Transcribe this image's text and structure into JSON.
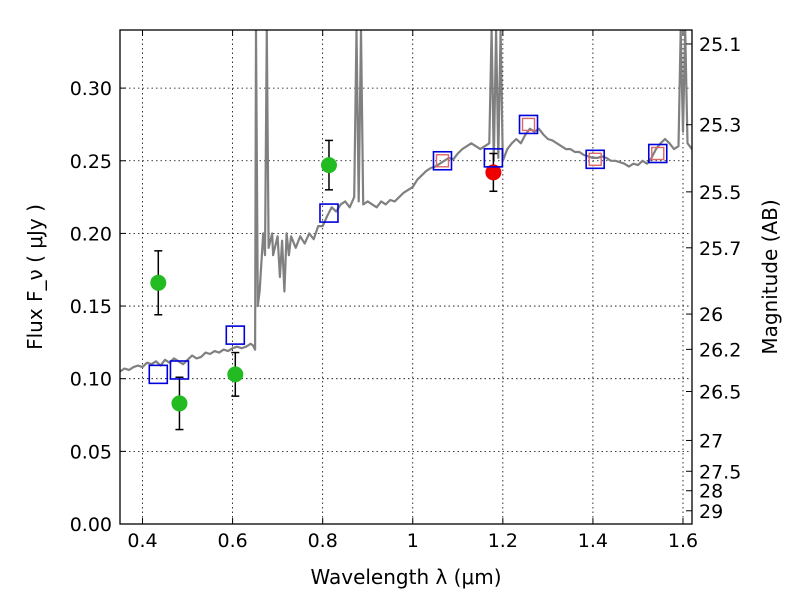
{
  "chart_data": {
    "type": "scatter",
    "title": "",
    "xlabel": "Wavelength  λ (μm)",
    "ylabel": "Flux  F_ν  ( μJy )",
    "y2label": "Magnitude (AB)",
    "xlim": [
      0.35,
      1.62
    ],
    "ylim": [
      0.0,
      0.34
    ],
    "grid": true,
    "x_ticks": [
      0.4,
      0.6,
      0.8,
      1.0,
      1.2,
      1.4,
      1.6
    ],
    "x_tick_labels": [
      "0.4",
      "0.6",
      "0.8",
      "1",
      "1.2",
      "1.4",
      "1.6"
    ],
    "y_ticks": [
      0.0,
      0.05,
      0.1,
      0.15,
      0.2,
      0.25,
      0.3
    ],
    "y_tick_labels": [
      "0.00",
      "0.05",
      "0.10",
      "0.15",
      "0.20",
      "0.25",
      "0.30"
    ],
    "y2_ticks": [
      {
        "label": "25.1",
        "flux": 0.3304
      },
      {
        "label": "25.3",
        "flux": 0.2748
      },
      {
        "label": "25.5",
        "flux": 0.2286
      },
      {
        "label": "25.7",
        "flux": 0.1901
      },
      {
        "label": "26",
        "flux": 0.1445
      },
      {
        "label": "26.2",
        "flux": 0.1202
      },
      {
        "label": "26.5",
        "flux": 0.0912
      },
      {
        "label": "27",
        "flux": 0.0575
      },
      {
        "label": "27.5",
        "flux": 0.0363
      },
      {
        "label": "28",
        "flux": 0.0229
      },
      {
        "label": "29",
        "flux": 0.0091
      }
    ],
    "colors": {
      "model": "#808080",
      "observed": "#22bb22",
      "observed_highlight": "#ee0000",
      "model_band": "#0000dd",
      "model_band_inner": "#dd6666"
    },
    "series": [
      {
        "name": "model_spectrum",
        "type": "line",
        "x": [
          0.35,
          0.36,
          0.37,
          0.38,
          0.39,
          0.4,
          0.41,
          0.42,
          0.43,
          0.44,
          0.45,
          0.46,
          0.47,
          0.48,
          0.49,
          0.5,
          0.51,
          0.52,
          0.53,
          0.54,
          0.55,
          0.56,
          0.57,
          0.58,
          0.59,
          0.6,
          0.61,
          0.62,
          0.63,
          0.64,
          0.645,
          0.65,
          0.652,
          0.656,
          0.66,
          0.664,
          0.668,
          0.672,
          0.676,
          0.68,
          0.684,
          0.688,
          0.69,
          0.7,
          0.705,
          0.71,
          0.715,
          0.72,
          0.725,
          0.73,
          0.74,
          0.75,
          0.76,
          0.77,
          0.78,
          0.79,
          0.8,
          0.81,
          0.82,
          0.83,
          0.84,
          0.85,
          0.86,
          0.87,
          0.875,
          0.88,
          0.885,
          0.89,
          0.9,
          0.91,
          0.92,
          0.93,
          0.94,
          0.95,
          0.96,
          0.97,
          0.98,
          0.99,
          1.0,
          1.01,
          1.02,
          1.03,
          1.04,
          1.05,
          1.06,
          1.07,
          1.08,
          1.09,
          1.1,
          1.11,
          1.12,
          1.13,
          1.14,
          1.15,
          1.16,
          1.17,
          1.175,
          1.18,
          1.185,
          1.19,
          1.195,
          1.2,
          1.21,
          1.22,
          1.23,
          1.24,
          1.25,
          1.26,
          1.27,
          1.28,
          1.29,
          1.3,
          1.31,
          1.32,
          1.33,
          1.34,
          1.35,
          1.36,
          1.37,
          1.38,
          1.39,
          1.4,
          1.41,
          1.42,
          1.43,
          1.44,
          1.45,
          1.46,
          1.47,
          1.48,
          1.49,
          1.5,
          1.51,
          1.52,
          1.53,
          1.54,
          1.55,
          1.56,
          1.57,
          1.58,
          1.59,
          1.595,
          1.6,
          1.605,
          1.61,
          1.62
        ],
        "y": [
          0.105,
          0.107,
          0.106,
          0.108,
          0.109,
          0.108,
          0.111,
          0.11,
          0.112,
          0.109,
          0.113,
          0.111,
          0.114,
          0.112,
          0.11,
          0.113,
          0.116,
          0.114,
          0.115,
          0.118,
          0.117,
          0.119,
          0.118,
          0.12,
          0.119,
          0.121,
          0.122,
          0.121,
          0.122,
          0.124,
          0.123,
          0.12,
          0.34,
          0.15,
          0.16,
          0.18,
          0.2,
          0.185,
          0.34,
          0.19,
          0.195,
          0.2,
          0.185,
          0.198,
          0.17,
          0.195,
          0.16,
          0.2,
          0.185,
          0.198,
          0.19,
          0.198,
          0.193,
          0.2,
          0.196,
          0.205,
          0.205,
          0.212,
          0.218,
          0.215,
          0.22,
          0.222,
          0.218,
          0.225,
          0.34,
          0.222,
          0.34,
          0.22,
          0.222,
          0.22,
          0.218,
          0.222,
          0.22,
          0.223,
          0.222,
          0.225,
          0.228,
          0.23,
          0.232,
          0.237,
          0.24,
          0.243,
          0.245,
          0.246,
          0.248,
          0.25,
          0.252,
          0.251,
          0.255,
          0.258,
          0.26,
          0.262,
          0.26,
          0.258,
          0.26,
          0.262,
          0.34,
          0.25,
          0.34,
          0.252,
          0.34,
          0.25,
          0.258,
          0.262,
          0.265,
          0.262,
          0.268,
          0.272,
          0.27,
          0.272,
          0.268,
          0.265,
          0.264,
          0.262,
          0.26,
          0.258,
          0.258,
          0.256,
          0.256,
          0.254,
          0.253,
          0.252,
          0.252,
          0.253,
          0.252,
          0.25,
          0.25,
          0.249,
          0.248,
          0.246,
          0.248,
          0.247,
          0.25,
          0.248,
          0.252,
          0.258,
          0.262,
          0.265,
          0.262,
          0.258,
          0.26,
          0.34,
          0.27,
          0.34,
          0.262,
          0.258
        ]
      },
      {
        "name": "observed_photometry",
        "type": "errorbar",
        "x": [
          0.435,
          0.482,
          0.606,
          0.814
        ],
        "y": [
          0.166,
          0.083,
          0.103,
          0.247
        ],
        "yerr": [
          0.022,
          0.018,
          0.015,
          0.017
        ]
      },
      {
        "name": "observed_photometry_highlight",
        "type": "errorbar",
        "x": [
          1.179
        ],
        "y": [
          0.242
        ],
        "yerr": [
          0.013
        ]
      },
      {
        "name": "model_photometry",
        "type": "scatter",
        "x": [
          0.435,
          0.482,
          0.606,
          0.814,
          1.066,
          1.179,
          1.257,
          1.405,
          1.544
        ],
        "y": [
          0.103,
          0.106,
          0.13,
          0.214,
          0.25,
          0.252,
          0.275,
          0.251,
          0.255
        ]
      },
      {
        "name": "model_photometry_inner",
        "type": "scatter",
        "x": [
          1.066,
          1.257,
          1.405,
          1.544
        ],
        "y": [
          0.25,
          0.275,
          0.251,
          0.255
        ]
      }
    ]
  }
}
